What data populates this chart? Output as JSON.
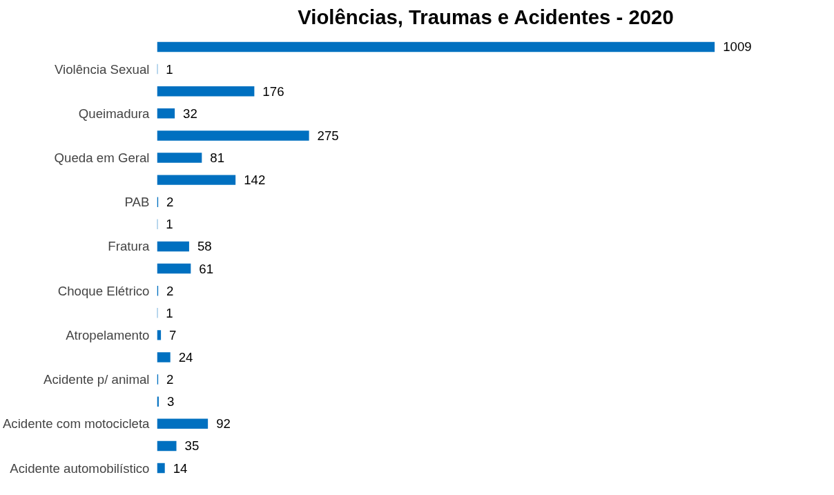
{
  "chart_data": {
    "type": "bar",
    "orientation": "horizontal",
    "title": "Violências, Traumas e Acidentes - 2020",
    "categories": [
      null,
      "Violência Sexual",
      null,
      "Queimadura",
      null,
      "Queda em Geral",
      null,
      "PAB",
      null,
      "Fratura",
      null,
      "Choque Elétrico",
      null,
      "Atropelamento",
      null,
      "Acidente p/ animal",
      null,
      "Acidente com motocicleta",
      null,
      "Acidente automobilístico"
    ],
    "values": [
      1009,
      1,
      176,
      32,
      275,
      81,
      142,
      2,
      1,
      58,
      61,
      2,
      1,
      7,
      24,
      2,
      3,
      92,
      35,
      14
    ],
    "color": "#0070c0",
    "data_labels": true,
    "grid": false
  }
}
